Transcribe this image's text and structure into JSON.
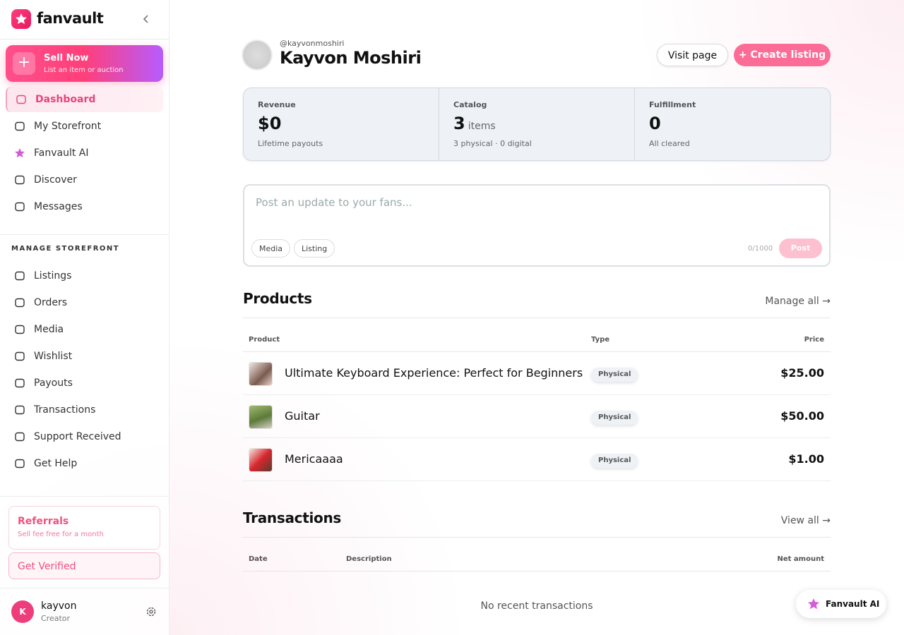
{
  "sidebar": {
    "brand": "fanvault",
    "sell": {
      "title": "Sell Now",
      "subtitle": "List an item or auction"
    },
    "nav": [
      "Dashboard",
      "My Storefront",
      "Fanvault AI",
      "Discover",
      "Messages"
    ],
    "section_label": "MANAGE STOREFRONT",
    "manage": [
      "Listings",
      "Orders",
      "Media",
      "Wishlist",
      "Payouts",
      "Transactions",
      "Support Received",
      "Get Help"
    ],
    "referrals": {
      "title": "Referrals",
      "subtitle": "Sell fee free for a month"
    },
    "verify": "Get Verified",
    "user": {
      "initial": "K",
      "name": "kayvon",
      "role": "Creator"
    }
  },
  "header": {
    "handle": "@kayvonmoshiri",
    "name": "Kayvon Moshiri",
    "visit": "Visit page",
    "create": "+ Create listing"
  },
  "stats": [
    {
      "label": "Revenue",
      "value": "$0",
      "note": "Lifetime payouts"
    },
    {
      "label": "Catalog",
      "value": "3",
      "unit": "items",
      "note": "3 physical · 0 digital"
    },
    {
      "label": "Fulfillment",
      "value": "0",
      "note": "All cleared"
    }
  ],
  "composer": {
    "placeholder": "Post an update to your fans...",
    "chips": [
      "Media",
      "Listing"
    ],
    "counter": "0/1000",
    "post": "Post"
  },
  "products": {
    "title": "Products",
    "link": "Manage all →",
    "columns": [
      "Product",
      "Type",
      "Price"
    ],
    "rows": [
      [
        "Ultimate Keyboard Experience: Perfect for Beginners",
        "Physical",
        "$25.00"
      ],
      [
        "Guitar",
        "Physical",
        "$50.00"
      ],
      [
        "Mericaaaa",
        "Physical",
        "$1.00"
      ]
    ]
  },
  "transactions": {
    "title": "Transactions",
    "link": "View all →",
    "columns": [
      "Date",
      "Description",
      "Net amount"
    ],
    "empty": "No recent transactions"
  },
  "assistant": "Fanvault AI"
}
